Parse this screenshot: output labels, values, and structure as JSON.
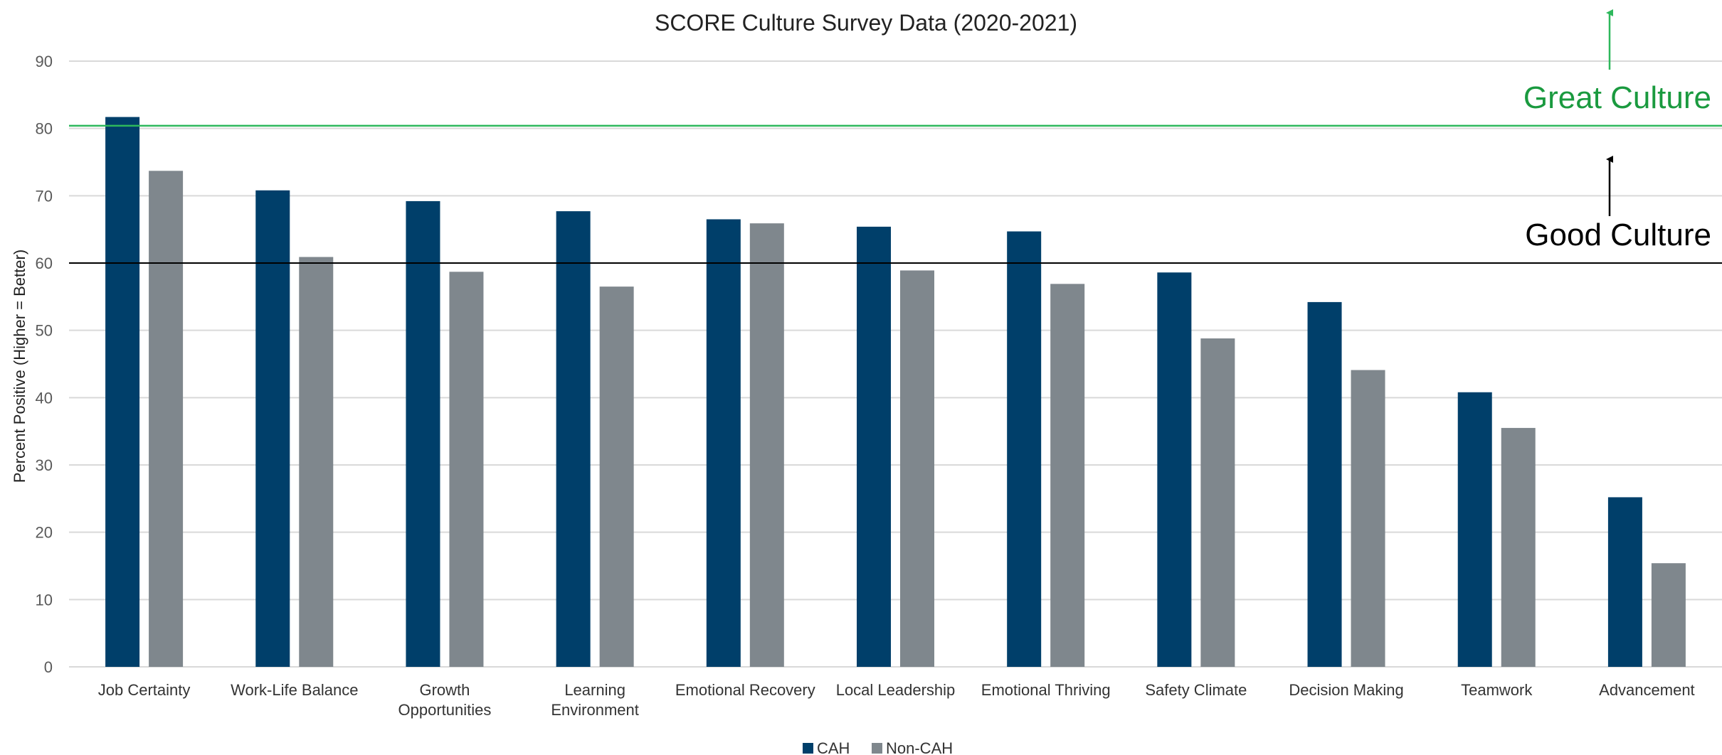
{
  "chart_data": {
    "type": "bar",
    "title": "SCORE Culture Survey Data (2020-2021)",
    "xlabel": "",
    "ylabel": "Percent Positive (Higher = Better)",
    "ylim": [
      0,
      90
    ],
    "yticks": [
      0,
      10,
      20,
      30,
      40,
      50,
      60,
      70,
      80,
      90
    ],
    "grid": true,
    "legend_position": "bottom",
    "categories": [
      [
        "Job Certainty"
      ],
      [
        "Work-Life Balance"
      ],
      [
        "Growth",
        "Opportunities"
      ],
      [
        "Learning",
        "Environment"
      ],
      [
        "Emotional Recovery"
      ],
      [
        "Local Leadership"
      ],
      [
        "Emotional Thriving"
      ],
      [
        "Safety Climate"
      ],
      [
        "Decision Making"
      ],
      [
        "Teamwork"
      ],
      [
        "Advancement"
      ]
    ],
    "series": [
      {
        "name": "CAH",
        "color": "#003f6a",
        "values": [
          81.7,
          70.8,
          69.2,
          67.7,
          66.5,
          65.4,
          64.7,
          58.6,
          54.2,
          40.8,
          25.2
        ]
      },
      {
        "name": "Non-CAH",
        "color": "#7f878d",
        "values": [
          73.7,
          60.9,
          58.7,
          56.5,
          65.9,
          58.9,
          56.9,
          48.8,
          44.1,
          35.5,
          15.4
        ]
      }
    ],
    "reference_lines": [
      {
        "value": 80.4,
        "color": "#2eb85c",
        "label": "Great Culture",
        "label_color": "#1a9a3f"
      },
      {
        "value": 60,
        "color": "#000000",
        "label": "Good Culture",
        "label_color": "#000000"
      }
    ]
  }
}
